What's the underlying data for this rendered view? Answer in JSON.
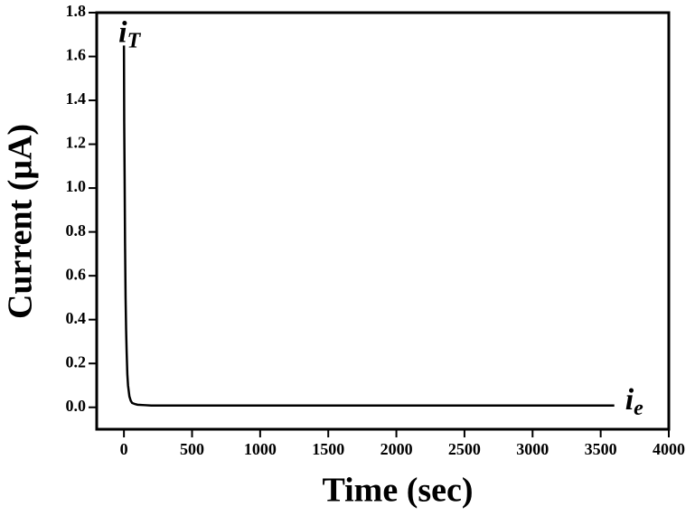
{
  "chart_data": {
    "type": "line",
    "xlabel": "Time (sec)",
    "ylabel": "Current (μA)",
    "x": [
      0,
      2,
      5,
      8,
      12,
      16,
      20,
      25,
      30,
      40,
      50,
      60,
      80,
      100,
      150,
      200,
      300,
      500,
      800,
      1000,
      1500,
      2000,
      2500,
      3000,
      3500,
      3600
    ],
    "series": [
      {
        "name": "Current",
        "color": "#000000",
        "values": [
          1.65,
          1.3,
          1.05,
          0.75,
          0.5,
          0.35,
          0.25,
          0.15,
          0.1,
          0.05,
          0.03,
          0.02,
          0.015,
          0.012,
          0.01,
          0.008,
          0.008,
          0.008,
          0.008,
          0.008,
          0.008,
          0.008,
          0.008,
          0.008,
          0.008,
          0.008
        ]
      }
    ],
    "annotations": [
      {
        "text": "i",
        "subscript": "T"
      },
      {
        "text": "i",
        "subscript": "e"
      }
    ],
    "xlim": [
      -200,
      4000
    ],
    "xticks": [
      0,
      500,
      1000,
      1500,
      2000,
      2500,
      3000,
      3500,
      4000
    ],
    "ylim": [
      -0.1,
      1.8
    ],
    "yticks": [
      {
        "value": 0,
        "label": "0.0"
      },
      0.2,
      0.4,
      0.6,
      0.8,
      {
        "value": 1,
        "label": "1.0"
      },
      1.2,
      1.4,
      1.6,
      1.8
    ],
    "grid": false
  }
}
